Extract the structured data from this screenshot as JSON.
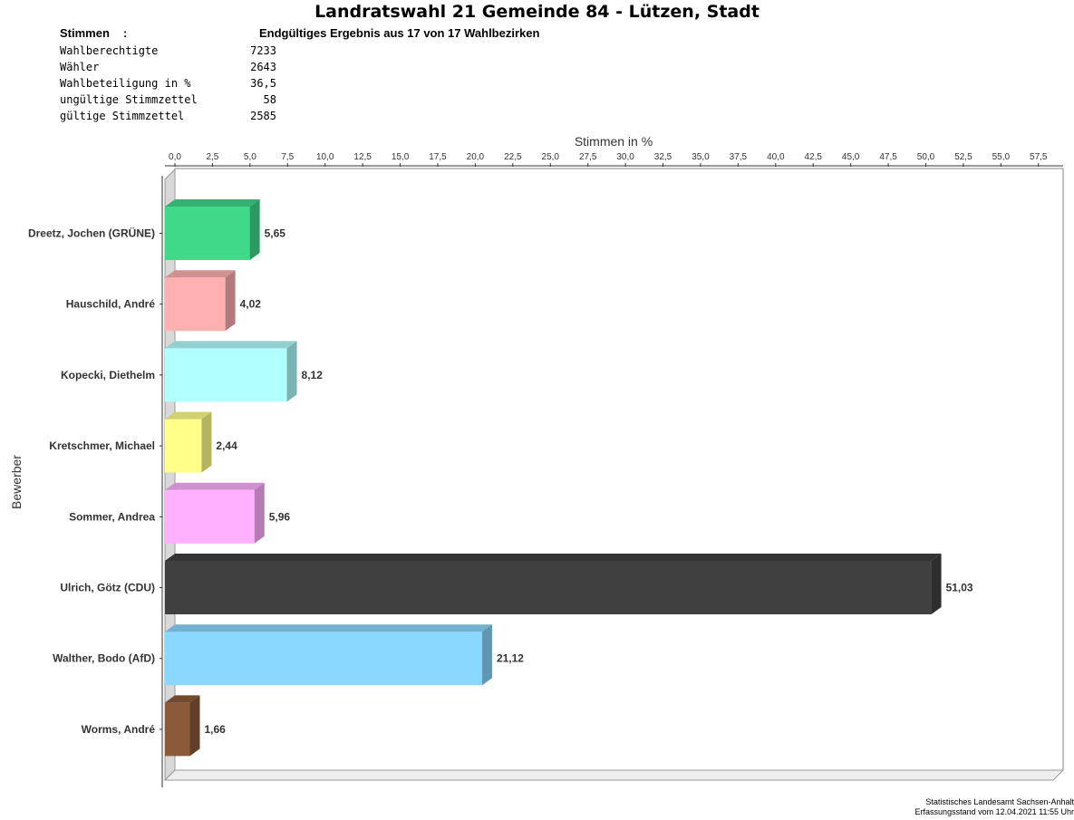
{
  "header": {
    "title": "Landratswahl 21 Gemeinde 84 - Lützen, Stadt",
    "stimmen_label": "Stimmen",
    "stimmen_colon": ":",
    "status": "Endgültiges Ergebnis aus 17 von 17 Wahlbezirken"
  },
  "stats": [
    {
      "label": "Wahlberechtigte",
      "value": "7233"
    },
    {
      "label": "Wähler",
      "value": "2643"
    },
    {
      "label": "Wahlbeteiligung in %",
      "value": "36,5"
    },
    {
      "label": "ungültige Stimmzettel",
      "value": "58"
    },
    {
      "label": "gültige Stimmzettel",
      "value": "2585"
    }
  ],
  "chart_data": {
    "type": "bar",
    "orientation": "horizontal",
    "xlabel": "Stimmen in %",
    "ylabel": "Bewerber",
    "xlim": [
      0,
      57.5
    ],
    "x_ticks": [
      "0,0",
      "2,5",
      "5,0",
      "7,5",
      "10,0",
      "12,5",
      "15,0",
      "17,5",
      "20,0",
      "22,5",
      "25,0",
      "27,5",
      "30,0",
      "32,5",
      "35,0",
      "37,5",
      "40,0",
      "42,5",
      "45,0",
      "47,5",
      "50,0",
      "52,5",
      "55,0",
      "57,5"
    ],
    "grid": false,
    "categories": [
      "Dreetz, Jochen (GRÜNE)",
      "Hauschild, André",
      "Kopecki, Diethelm",
      "Kretschmer, Michael",
      "Sommer, Andrea",
      "Ulrich, Götz (CDU)",
      "Walther, Bodo (AfD)",
      "Worms, André"
    ],
    "values": [
      5.65,
      4.02,
      8.12,
      2.44,
      5.96,
      51.03,
      21.12,
      1.66
    ],
    "value_labels": [
      "5,65",
      "4,02",
      "8,12",
      "2,44",
      "5,96",
      "51,03",
      "21,12",
      "1,66"
    ],
    "colors": [
      "#40d98a",
      "#ffb1b1",
      "#b1ffff",
      "#ffff8a",
      "#ffb1ff",
      "#404040",
      "#8ad8ff",
      "#8a5a3a"
    ]
  },
  "footer": {
    "line1": "Statistisches Landesamt Sachsen-Anhalt",
    "line2": "Erfassungsstand vom 12.04.2021 11:55 Uhr"
  }
}
